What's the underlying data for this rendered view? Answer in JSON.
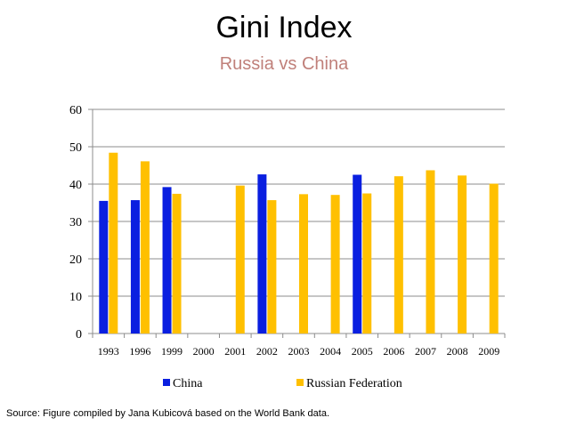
{
  "title": "Gini Index",
  "subtitle": "Russia vs China",
  "source": "Source: Figure compiled by Jana Kubicová based on the World Bank data.",
  "colors": {
    "china": "#0a1fe0",
    "russia": "#ffc000",
    "grid": "#8c8c8c"
  },
  "chart_data": {
    "type": "bar",
    "categories": [
      "1993",
      "1996",
      "1999",
      "2000",
      "2001",
      "2002",
      "2003",
      "2004",
      "2005",
      "2006",
      "2007",
      "2008",
      "2009"
    ],
    "series": [
      {
        "name": "China",
        "color": "#0a1fe0",
        "values": [
          35.5,
          35.7,
          39.2,
          null,
          null,
          42.6,
          null,
          null,
          42.5,
          null,
          null,
          null,
          null
        ]
      },
      {
        "name": "Russian Federation",
        "color": "#ffc000",
        "values": [
          48.4,
          46.1,
          37.4,
          null,
          39.6,
          35.7,
          37.3,
          37.1,
          37.5,
          42.1,
          43.7,
          42.3,
          40.1
        ]
      }
    ],
    "ylim": [
      0,
      60
    ],
    "yticks": [
      0,
      10,
      20,
      30,
      40,
      50,
      60
    ],
    "grid": true,
    "legend": "bottom"
  }
}
